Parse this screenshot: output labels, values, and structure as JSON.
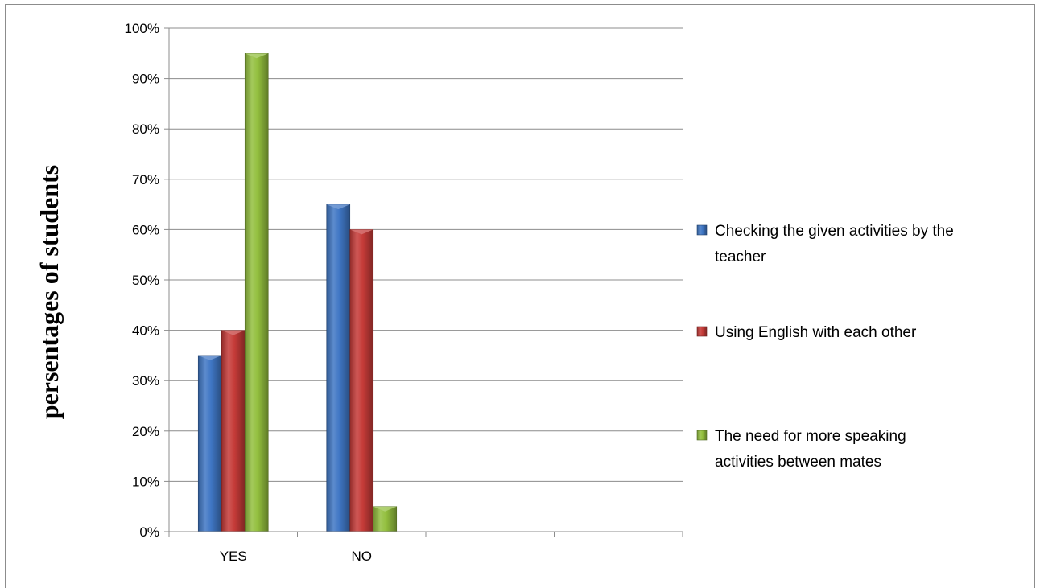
{
  "chart_data": {
    "type": "bar",
    "categories": [
      "YES",
      "NO",
      "",
      ""
    ],
    "ylabel": "persentages of students",
    "xlabel": "",
    "ylim": [
      0,
      100
    ],
    "ytick_step": 10,
    "yticks": [
      "0%",
      "10%",
      "20%",
      "30%",
      "40%",
      "50%",
      "60%",
      "70%",
      "80%",
      "90%",
      "100%"
    ],
    "grid": true,
    "legend_position": "right",
    "series": [
      {
        "name": "Checking the given activities by the teacher",
        "legend_lines": [
          "Checking the given activities by the",
          "teacher"
        ],
        "color": "#3f76c4",
        "values": [
          35,
          65,
          null,
          null
        ]
      },
      {
        "name": "Using English with each other",
        "legend_lines": [
          "Using English with each other"
        ],
        "color": "#c53b38",
        "values": [
          40,
          60,
          null,
          null
        ]
      },
      {
        "name": "The need for more speaking activities between mates",
        "legend_lines": [
          "The need for more speaking",
          "activities between mates"
        ],
        "color": "#93bf3e",
        "values": [
          95,
          5,
          null,
          null
        ]
      }
    ]
  }
}
